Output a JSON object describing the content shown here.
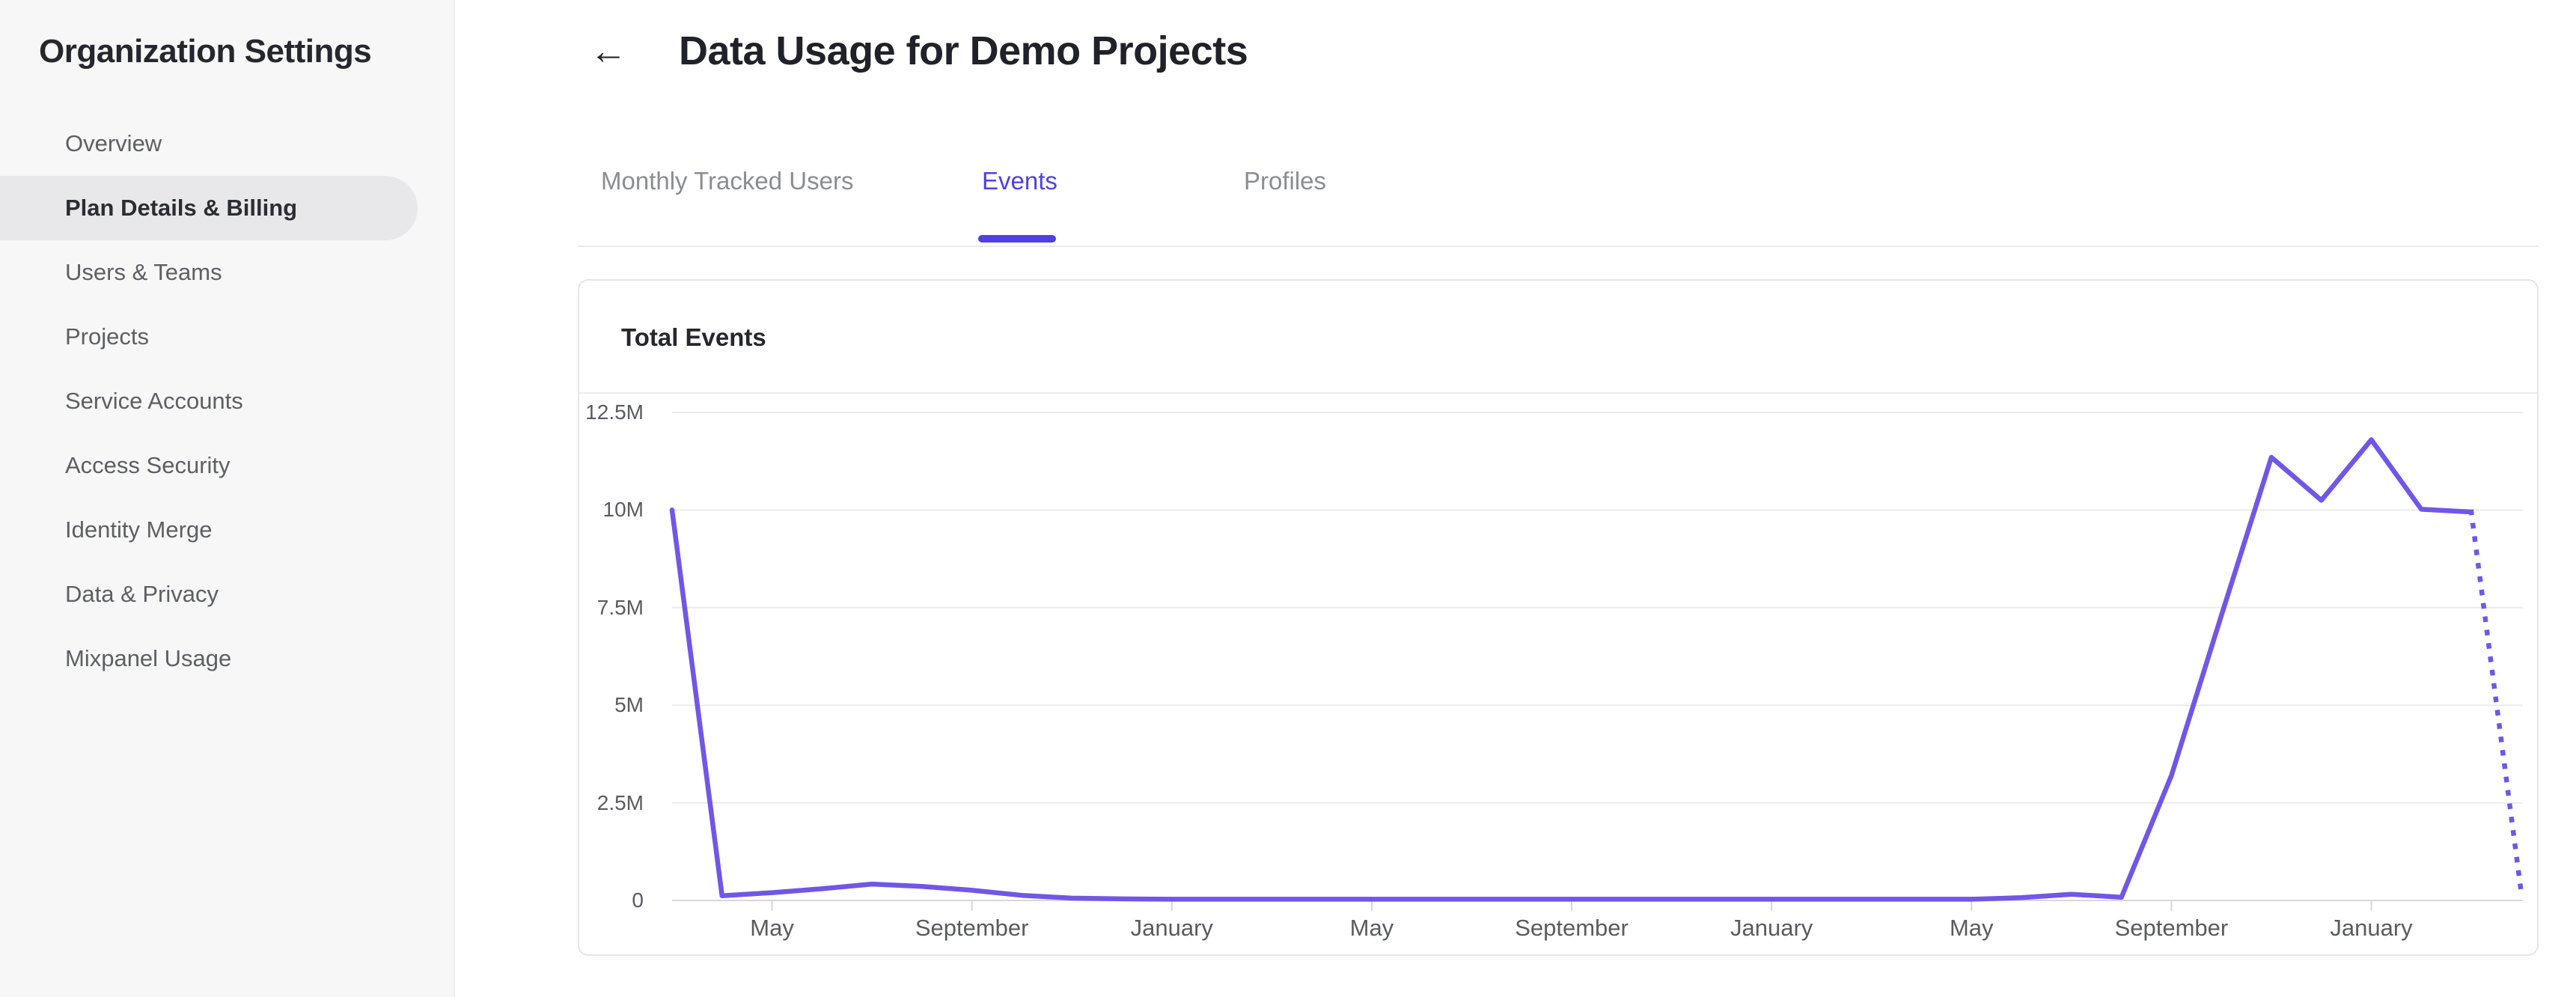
{
  "sidebar": {
    "title": "Organization Settings",
    "items": [
      {
        "label": "Overview",
        "active": false
      },
      {
        "label": "Plan Details & Billing",
        "active": true
      },
      {
        "label": "Users & Teams",
        "active": false
      },
      {
        "label": "Projects",
        "active": false
      },
      {
        "label": "Service Accounts",
        "active": false
      },
      {
        "label": "Access Security",
        "active": false
      },
      {
        "label": "Identity Merge",
        "active": false
      },
      {
        "label": "Data & Privacy",
        "active": false
      },
      {
        "label": "Mixpanel Usage",
        "active": false
      }
    ]
  },
  "header": {
    "back_icon": "←",
    "title": "Data Usage for Demo Projects"
  },
  "tabs": [
    {
      "label": "Monthly Tracked Users",
      "active": false
    },
    {
      "label": "Events",
      "active": true
    },
    {
      "label": "Profiles",
      "active": false
    }
  ],
  "card": {
    "title": "Total Events"
  },
  "colors": {
    "accent": "#4f40e4",
    "line": "#7156e8",
    "grid": "#ebebee",
    "axis": "#d7d7da",
    "sidebar_bg": "#f7f7f8",
    "active_pill": "#e8e8ea"
  },
  "chart_data": {
    "type": "line",
    "title": "Total Events",
    "xlabel": "",
    "ylabel": "",
    "unit_suffix": "M",
    "ylim": [
      0,
      12.5
    ],
    "grid": "horizontal",
    "legend": "none",
    "n_points": 38,
    "x_interval": "monthly",
    "y_ticks": [
      {
        "value": 0,
        "label": "0"
      },
      {
        "value": 2.5,
        "label": "2.5M"
      },
      {
        "value": 5,
        "label": "5M"
      },
      {
        "value": 7.5,
        "label": "7.5M"
      },
      {
        "value": 10,
        "label": "10M"
      },
      {
        "value": 12.5,
        "label": "12.5M"
      }
    ],
    "x_ticks": [
      {
        "index": 2,
        "label": "May"
      },
      {
        "index": 6,
        "label": "September"
      },
      {
        "index": 10,
        "label": "January"
      },
      {
        "index": 14,
        "label": "May"
      },
      {
        "index": 18,
        "label": "September"
      },
      {
        "index": 22,
        "label": "January"
      },
      {
        "index": 26,
        "label": "May"
      },
      {
        "index": 30,
        "label": "September"
      },
      {
        "index": 34,
        "label": "January"
      }
    ],
    "series": [
      {
        "name": "Total Events",
        "color": "#7156e8",
        "dotted_from_index": 36,
        "values_millions": [
          10,
          0.12,
          0.2,
          0.3,
          0.42,
          0.36,
          0.26,
          0.13,
          0.06,
          0.04,
          0.03,
          0.03,
          0.03,
          0.03,
          0.03,
          0.03,
          0.03,
          0.03,
          0.03,
          0.03,
          0.03,
          0.03,
          0.03,
          0.03,
          0.03,
          0.03,
          0.03,
          0.07,
          0.16,
          0.08,
          3.2,
          7.3,
          11.35,
          10.25,
          11.8,
          10.02,
          9.95,
          0.2
        ]
      }
    ]
  }
}
